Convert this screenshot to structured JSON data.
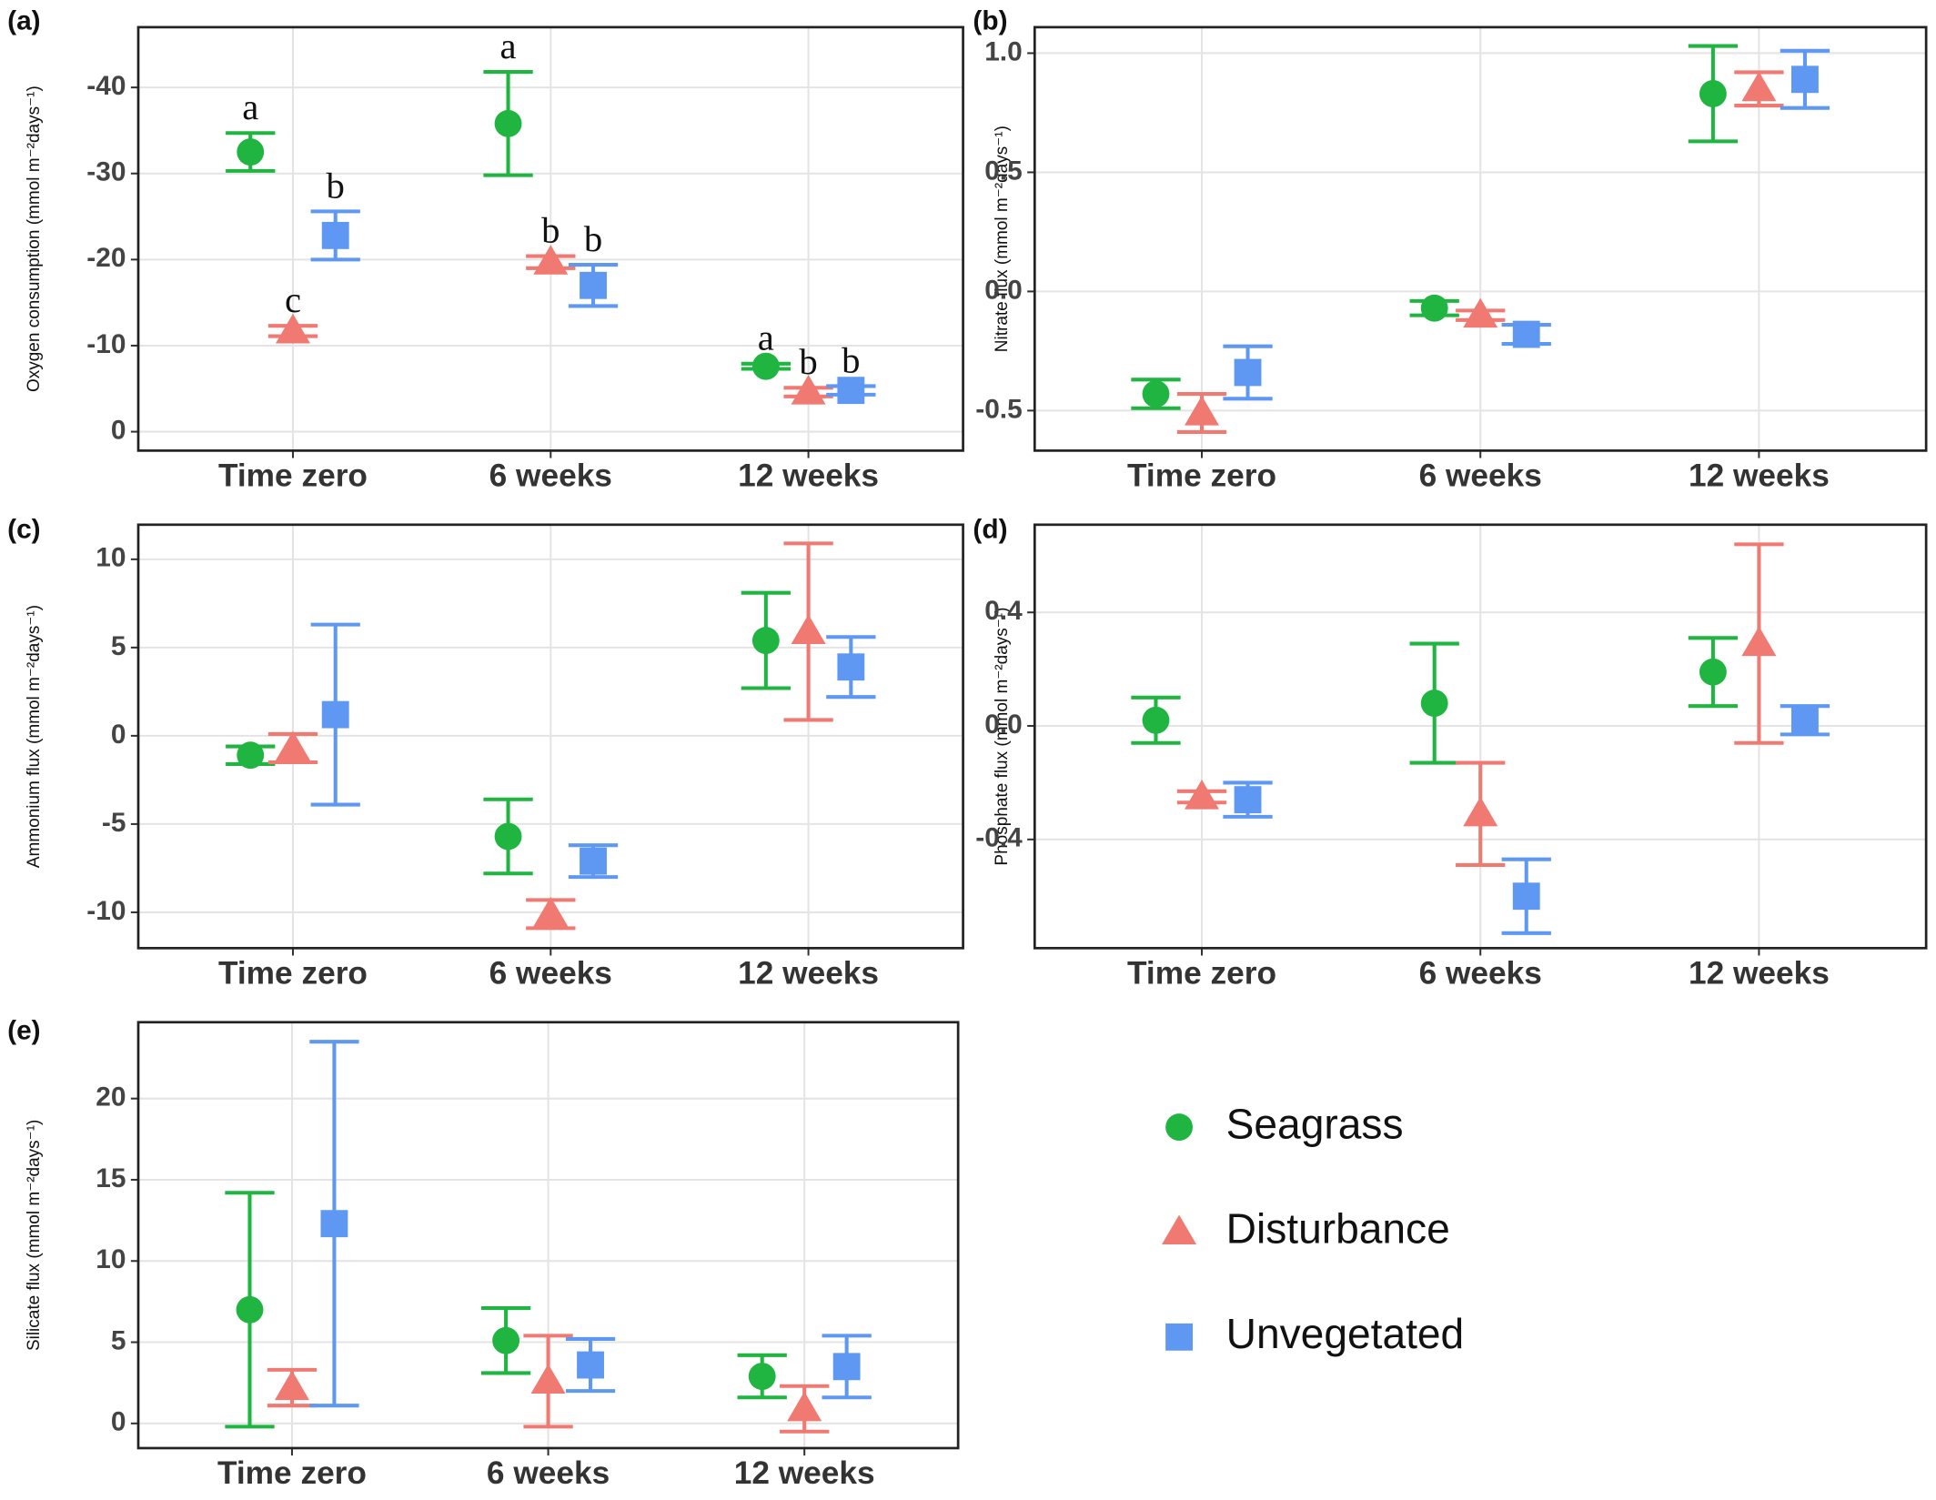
{
  "chart_data": [
    {
      "type": "errorbar_points",
      "panel": "(a)",
      "y_label": "Oxygen consumption (mmol  m⁻²days⁻¹)",
      "categories": [
        "Time zero",
        "6 weeks",
        "12 weeks"
      ],
      "ylim": [
        2.2,
        -47
      ],
      "yticks": [
        -40,
        -30,
        -20,
        -10,
        0
      ],
      "grid": true,
      "series": [
        {
          "name": "Seagrass",
          "marker": "circle",
          "color": "#1fb540",
          "values": [
            -32.5,
            -35.8,
            -7.6
          ],
          "errors": [
            2.2,
            6,
            0.3
          ],
          "annotations": [
            "a",
            "a",
            "a"
          ]
        },
        {
          "name": "Disturbance",
          "marker": "triangle",
          "color": "#f07a72",
          "values": [
            -11.7,
            -19.7,
            -4.6
          ],
          "errors": [
            0.6,
            0.7,
            0.5
          ],
          "annotations": [
            "c",
            "b",
            "b"
          ]
        },
        {
          "name": "Unvegetated",
          "marker": "square",
          "color": "#5e98f2",
          "values": [
            -22.8,
            -17,
            -4.8
          ],
          "errors": [
            2.8,
            2.4,
            0.5
          ],
          "annotations": [
            "b",
            "b",
            "b"
          ]
        }
      ]
    },
    {
      "type": "errorbar_points",
      "panel": "(b)",
      "y_label": "Nitrate flux (mmol  m⁻²days⁻¹)",
      "categories": [
        "Time zero",
        "6 weeks",
        "12 weeks"
      ],
      "ylim": [
        -0.668,
        1.109
      ],
      "yticks": [
        -0.5,
        {
          "value": 0,
          "label": "0.0"
        },
        0.5,
        {
          "value": 1,
          "label": "1.0"
        }
      ],
      "grid": true,
      "series": [
        {
          "name": "Seagrass",
          "marker": "circle",
          "color": "#1fb540",
          "values": [
            -0.43,
            -0.07,
            0.83
          ],
          "errors": [
            0.06,
            0.03,
            0.2
          ]
        },
        {
          "name": "Disturbance",
          "marker": "triangle",
          "color": "#f07a72",
          "values": [
            -0.51,
            -0.1,
            0.85
          ],
          "errors": [
            0.08,
            0.02,
            0.07
          ]
        },
        {
          "name": "Unvegetated",
          "marker": "square",
          "color": "#5e98f2",
          "values": [
            -0.34,
            -0.18,
            0.89
          ],
          "errors": [
            0.11,
            0.04,
            0.12
          ]
        }
      ]
    },
    {
      "type": "errorbar_points",
      "panel": "(c)",
      "y_label": "Ammonium flux (mmol  m⁻²days⁻¹)",
      "categories": [
        "Time zero",
        "6 weeks",
        "12 weeks"
      ],
      "ylim": [
        -12.03,
        11.96
      ],
      "yticks": [
        -10,
        -5,
        0,
        5,
        10
      ],
      "grid": true,
      "series": [
        {
          "name": "Seagrass",
          "marker": "circle",
          "color": "#1fb540",
          "values": [
            -1.1,
            -5.7,
            5.4
          ],
          "errors": [
            0.5,
            2.1,
            2.7
          ]
        },
        {
          "name": "Disturbance",
          "marker": "triangle",
          "color": "#f07a72",
          "values": [
            -0.7,
            -10.1,
            5.9
          ],
          "errors": [
            0.8,
            0.8,
            5
          ]
        },
        {
          "name": "Unvegetated",
          "marker": "square",
          "color": "#5e98f2",
          "values": [
            1.2,
            -7.1,
            3.9
          ],
          "errors": [
            5.1,
            0.9,
            1.7
          ]
        }
      ]
    },
    {
      "type": "errorbar_points",
      "panel": "(d)",
      "y_label": "Phosphate  flux (mmol  m⁻²days⁻¹)",
      "categories": [
        "Time zero",
        "6 weeks",
        "12 weeks"
      ],
      "ylim": [
        -0.783,
        0.709
      ],
      "yticks": [
        -0.4,
        {
          "value": 0,
          "label": "0.0"
        },
        0.4
      ],
      "grid": true,
      "series": [
        {
          "name": "Seagrass",
          "marker": "circle",
          "color": "#1fb540",
          "values": [
            0.02,
            0.08,
            0.19
          ],
          "errors": [
            0.08,
            0.21,
            0.12
          ]
        },
        {
          "name": "Disturbance",
          "marker": "triangle",
          "color": "#f07a72",
          "values": [
            -0.25,
            -0.31,
            0.29
          ],
          "errors": [
            0.02,
            0.18,
            0.35
          ]
        },
        {
          "name": "Unvegetated",
          "marker": "square",
          "color": "#5e98f2",
          "values": [
            -0.26,
            -0.6,
            0.02
          ],
          "errors": [
            0.06,
            0.13,
            0.05
          ]
        }
      ]
    },
    {
      "type": "errorbar_points",
      "panel": "(e)",
      "y_label": "Silicate flux (mmol  m⁻²days⁻¹)",
      "categories": [
        "Time zero",
        "6 weeks",
        "12 weeks"
      ],
      "ylim": [
        -1.52,
        24.7
      ],
      "yticks": [
        0,
        5,
        10,
        15,
        20
      ],
      "grid": true,
      "series": [
        {
          "name": "Seagrass",
          "marker": "circle",
          "color": "#1fb540",
          "values": [
            7,
            5.1,
            2.9
          ],
          "errors": [
            7.2,
            2,
            1.3
          ]
        },
        {
          "name": "Disturbance",
          "marker": "triangle",
          "color": "#f07a72",
          "values": [
            2.2,
            2.6,
            0.9
          ],
          "errors": [
            1.1,
            2.8,
            1.4
          ]
        },
        {
          "name": "Unvegetated",
          "marker": "square",
          "color": "#5e98f2",
          "values": [
            12.3,
            3.6,
            3.5
          ],
          "errors": [
            11.2,
            1.6,
            1.9
          ]
        }
      ]
    }
  ]
}
